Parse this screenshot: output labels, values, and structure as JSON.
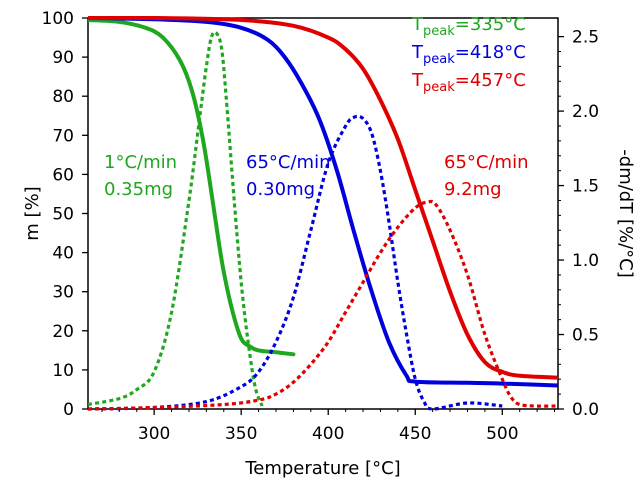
{
  "chart_data": {
    "type": "line",
    "xlabel": "Temperature  [°C]",
    "ylabel_left": "m  [%]",
    "ylabel_right": "-dm/dT  [%/°C]",
    "xlim": [
      262,
      532
    ],
    "ylim_left": [
      0,
      100
    ],
    "ylim_right": [
      0,
      2.625
    ],
    "x_ticks": [
      300,
      350,
      400,
      450,
      500
    ],
    "y_left_ticks": [
      0,
      10,
      20,
      30,
      40,
      50,
      60,
      70,
      80,
      90,
      100
    ],
    "y_right_ticks": [
      0.0,
      0.5,
      1.0,
      1.5,
      2.0,
      2.5
    ],
    "x_tick_labels": [
      "300",
      "350",
      "400",
      "450",
      "500"
    ],
    "y_left_tick_labels": [
      "0",
      "10",
      "20",
      "30",
      "40",
      "50",
      "60",
      "70",
      "80",
      "90",
      "100"
    ],
    "y_right_tick_labels": [
      "0.0",
      "0.5",
      "1.0",
      "1.5",
      "2.0",
      "2.5"
    ],
    "grid": false,
    "colors": {
      "green": "#1fa81f",
      "blue": "#0000dd",
      "red": "#e00000"
    },
    "series": [
      {
        "key": "green_mass",
        "axis": "left",
        "style": "solid",
        "color": "#1fa81f",
        "x": [
          262,
          280,
          295,
          305,
          315,
          322,
          328,
          333,
          337,
          340,
          345,
          350,
          355,
          360,
          370,
          380
        ],
        "y": [
          99.5,
          99,
          97.5,
          95,
          89,
          81,
          69,
          55,
          43,
          35,
          25,
          18,
          16,
          15,
          14.5,
          14
        ]
      },
      {
        "key": "green_rate",
        "axis": "right",
        "style": "dotted",
        "color": "#1fa81f",
        "x": [
          262,
          280,
          290,
          300,
          310,
          320,
          325,
          330,
          333,
          336,
          339,
          342,
          346,
          350,
          354,
          358,
          362
        ],
        "y": [
          0.03,
          0.07,
          0.13,
          0.25,
          0.65,
          1.4,
          1.85,
          2.3,
          2.5,
          2.52,
          2.4,
          2.0,
          1.4,
          0.85,
          0.45,
          0.15,
          0.02
        ]
      },
      {
        "key": "blue_mass",
        "axis": "left",
        "style": "solid",
        "color": "#0000dd",
        "x": [
          262,
          300,
          330,
          350,
          365,
          375,
          385,
          395,
          405,
          415,
          425,
          435,
          445,
          450,
          480,
          500,
          532
        ],
        "y": [
          100,
          99.7,
          99,
          97.5,
          94.5,
          90,
          83,
          74,
          61,
          45,
          30,
          17,
          8.5,
          7,
          6.7,
          6.5,
          6
        ]
      },
      {
        "key": "blue_rate",
        "axis": "right",
        "style": "dotted",
        "color": "#0000dd",
        "x": [
          262,
          300,
          330,
          350,
          360,
          370,
          380,
          390,
          400,
          410,
          415,
          420,
          425,
          430,
          435,
          440,
          445,
          450,
          455,
          460,
          480,
          500
        ],
        "y": [
          0.0,
          0.01,
          0.05,
          0.15,
          0.25,
          0.45,
          0.75,
          1.2,
          1.65,
          1.9,
          1.96,
          1.95,
          1.85,
          1.6,
          1.25,
          0.85,
          0.5,
          0.2,
          0.05,
          0.0,
          0.04,
          0.02
        ]
      },
      {
        "key": "red_mass",
        "axis": "left",
        "style": "solid",
        "color": "#e00000",
        "x": [
          262,
          300,
          350,
          380,
          400,
          410,
          420,
          430,
          440,
          450,
          460,
          470,
          480,
          490,
          500,
          510,
          532
        ],
        "y": [
          100,
          100,
          99.5,
          98,
          95,
          92,
          87,
          79,
          69,
          56,
          43,
          30,
          19,
          12,
          9.5,
          8.5,
          8
        ]
      },
      {
        "key": "red_rate",
        "axis": "right",
        "style": "dotted",
        "color": "#e00000",
        "x": [
          262,
          300,
          340,
          360,
          370,
          380,
          390,
          400,
          410,
          420,
          430,
          440,
          450,
          457,
          462,
          470,
          480,
          490,
          500,
          505,
          510,
          520,
          532
        ],
        "y": [
          0.0,
          0.01,
          0.03,
          0.06,
          0.1,
          0.18,
          0.3,
          0.45,
          0.65,
          0.85,
          1.05,
          1.22,
          1.35,
          1.39,
          1.37,
          1.2,
          0.9,
          0.5,
          0.2,
          0.08,
          0.03,
          0.02,
          0.02
        ]
      }
    ],
    "annotations": [
      {
        "key": "peak_green",
        "base": "T",
        "sub": "peak",
        "rest": "=335°C",
        "color": "#1fa81f"
      },
      {
        "key": "peak_blue",
        "base": "T",
        "sub": "peak",
        "rest": "=418°C",
        "color": "#0000dd"
      },
      {
        "key": "peak_red",
        "base": "T",
        "sub": "peak",
        "rest": "=457°C",
        "color": "#e00000"
      },
      {
        "key": "green_label",
        "lines": [
          "1°C/min",
          "0.35mg"
        ],
        "color": "#1fa81f"
      },
      {
        "key": "blue_label",
        "lines": [
          "65°C/min",
          "0.30mg"
        ],
        "color": "#0000dd"
      },
      {
        "key": "red_label",
        "lines": [
          "65°C/min",
          "9.2mg"
        ],
        "color": "#e00000"
      }
    ]
  }
}
